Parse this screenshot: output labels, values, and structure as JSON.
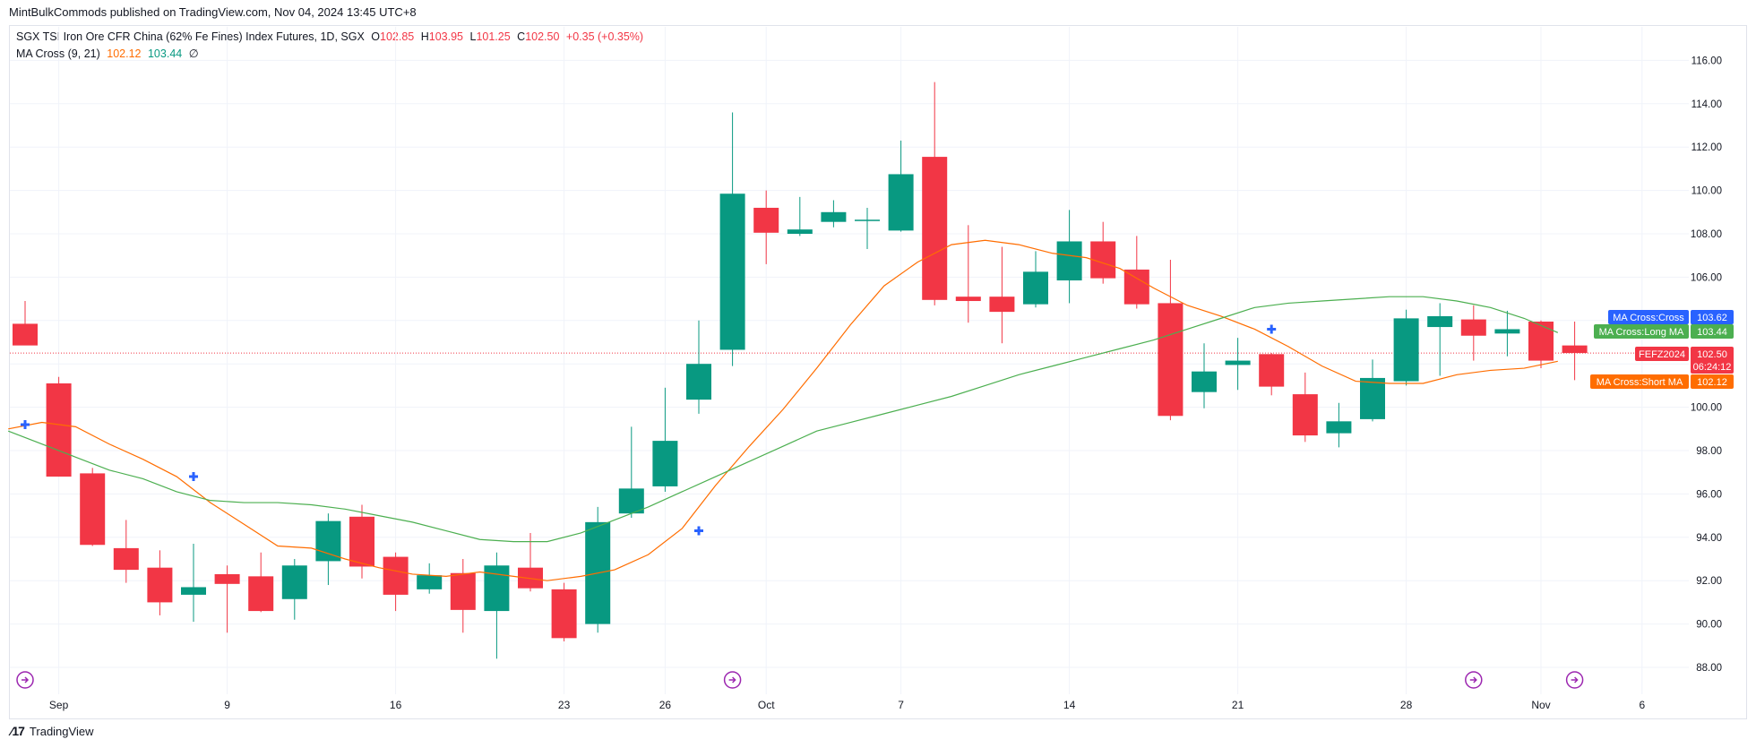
{
  "header": {
    "publisher_line": "MintBulkCommods published on TradingView.com, Nov 04, 2024 13:45 UTC+8"
  },
  "legend": {
    "symbol_title": "SGX TSI Iron Ore CFR China (62% Fe Fines) Index Futures, 1D, SGX",
    "o_label": "O",
    "o_value": "102.85",
    "h_label": "H",
    "h_value": "103.95",
    "l_label": "L",
    "l_value": "101.25",
    "c_label": "C",
    "c_value": "102.50",
    "change": "+0.35 (+0.35%)",
    "indicator_name": "MA Cross (9, 21)",
    "short_ma_value": "102.12",
    "long_ma_value": "103.44",
    "indicator_extra": "∅"
  },
  "price_labels": {
    "cross_label": "MA Cross:Cross",
    "cross_value": "103.62",
    "long_label": "MA Cross:Long MA",
    "long_value": "103.44",
    "symbol_label": "FEFZ2024",
    "symbol_value": "102.50",
    "countdown": "06:24:12",
    "short_label": "MA Cross:Short MA",
    "short_value": "102.12"
  },
  "footer": {
    "brand": "TradingView"
  },
  "colors": {
    "up": "#089981",
    "down": "#f23645",
    "short_ma": "#ff6d00",
    "long_ma": "#4caf50",
    "cross_marker": "#2962ff",
    "event_marker": "#9c27b0",
    "grid": "#f0f3fa"
  },
  "chart_data": {
    "type": "candlestick",
    "title": "SGX TSI Iron Ore CFR China (62% Fe Fines) Index Futures, 1D, SGX",
    "ylim": [
      87,
      117
    ],
    "y_ticks": [
      88,
      90,
      92,
      94,
      96,
      98,
      100,
      102,
      104,
      106,
      108,
      110,
      112,
      114,
      116
    ],
    "y_tick_labels": [
      "88.00",
      "90.00",
      "92.00",
      "94.00",
      "96.00",
      "98.00",
      "100.00",
      "102.00",
      "104.00",
      "106.00",
      "108.00",
      "110.00",
      "112.00",
      "114.00",
      "116.00"
    ],
    "x_tick_labels": [
      {
        "label": "Sep",
        "index": 1
      },
      {
        "label": "9",
        "index": 6
      },
      {
        "label": "16",
        "index": 11
      },
      {
        "label": "23",
        "index": 16
      },
      {
        "label": "26",
        "index": 19
      },
      {
        "label": "Oct",
        "index": 22
      },
      {
        "label": "7",
        "index": 26
      },
      {
        "label": "14",
        "index": 31
      },
      {
        "label": "21",
        "index": 36
      },
      {
        "label": "28",
        "index": 41
      },
      {
        "label": "Nov",
        "index": 45
      },
      {
        "label": "6",
        "index": 48
      }
    ],
    "candles": [
      {
        "o": 103.85,
        "h": 104.9,
        "l": 103.0,
        "c": 102.85
      },
      {
        "o": 101.1,
        "h": 101.4,
        "l": 96.8,
        "c": 96.8
      },
      {
        "o": 96.95,
        "h": 97.2,
        "l": 93.6,
        "c": 93.65
      },
      {
        "o": 93.5,
        "h": 94.8,
        "l": 91.9,
        "c": 92.5
      },
      {
        "o": 92.6,
        "h": 93.4,
        "l": 90.4,
        "c": 91.0
      },
      {
        "o": 91.35,
        "h": 93.7,
        "l": 90.1,
        "c": 91.7
      },
      {
        "o": 92.3,
        "h": 92.7,
        "l": 89.6,
        "c": 91.85
      },
      {
        "o": 92.2,
        "h": 93.3,
        "l": 90.55,
        "c": 90.6
      },
      {
        "o": 91.15,
        "h": 93.0,
        "l": 90.2,
        "c": 92.7
      },
      {
        "o": 92.9,
        "h": 95.1,
        "l": 91.8,
        "c": 94.75
      },
      {
        "o": 94.95,
        "h": 95.5,
        "l": 92.1,
        "c": 92.65
      },
      {
        "o": 93.1,
        "h": 93.3,
        "l": 90.6,
        "c": 91.35
      },
      {
        "o": 91.6,
        "h": 92.8,
        "l": 91.4,
        "c": 92.25
      },
      {
        "o": 92.35,
        "h": 93.0,
        "l": 89.6,
        "c": 90.65
      },
      {
        "o": 90.6,
        "h": 93.3,
        "l": 88.4,
        "c": 92.7
      },
      {
        "o": 92.6,
        "h": 94.2,
        "l": 91.5,
        "c": 91.65
      },
      {
        "o": 91.6,
        "h": 91.9,
        "l": 89.2,
        "c": 89.35
      },
      {
        "o": 90.0,
        "h": 95.4,
        "l": 89.6,
        "c": 94.7
      },
      {
        "o": 95.1,
        "h": 99.1,
        "l": 94.9,
        "c": 96.25
      },
      {
        "o": 96.35,
        "h": 100.9,
        "l": 96.1,
        "c": 98.45
      },
      {
        "o": 100.35,
        "h": 104.0,
        "l": 99.7,
        "c": 102.0
      },
      {
        "o": 102.65,
        "h": 113.6,
        "l": 101.9,
        "c": 109.85
      },
      {
        "o": 109.2,
        "h": 110.0,
        "l": 106.6,
        "c": 108.05
      },
      {
        "o": 108.0,
        "h": 109.7,
        "l": 107.9,
        "c": 108.2
      },
      {
        "o": 108.55,
        "h": 109.55,
        "l": 108.3,
        "c": 109.0
      },
      {
        "o": 108.65,
        "h": 109.2,
        "l": 107.3,
        "c": 108.65
      },
      {
        "o": 108.15,
        "h": 112.3,
        "l": 108.1,
        "c": 110.75
      },
      {
        "o": 111.55,
        "h": 115.0,
        "l": 104.7,
        "c": 104.95
      },
      {
        "o": 105.1,
        "h": 108.4,
        "l": 103.9,
        "c": 104.9
      },
      {
        "o": 105.1,
        "h": 107.4,
        "l": 102.95,
        "c": 104.4
      },
      {
        "o": 104.75,
        "h": 107.2,
        "l": 104.6,
        "c": 106.25
      },
      {
        "o": 105.85,
        "h": 109.1,
        "l": 104.8,
        "c": 107.65
      },
      {
        "o": 107.65,
        "h": 108.55,
        "l": 105.7,
        "c": 105.95
      },
      {
        "o": 106.35,
        "h": 107.9,
        "l": 104.55,
        "c": 104.75
      },
      {
        "o": 104.8,
        "h": 106.8,
        "l": 99.4,
        "c": 99.6
      },
      {
        "o": 100.7,
        "h": 102.95,
        "l": 99.95,
        "c": 101.65
      },
      {
        "o": 101.95,
        "h": 103.2,
        "l": 100.8,
        "c": 102.15
      },
      {
        "o": 102.45,
        "h": 102.5,
        "l": 100.55,
        "c": 100.95
      },
      {
        "o": 100.6,
        "h": 101.6,
        "l": 98.4,
        "c": 98.7
      },
      {
        "o": 98.8,
        "h": 100.2,
        "l": 98.15,
        "c": 99.35
      },
      {
        "o": 99.45,
        "h": 102.2,
        "l": 99.35,
        "c": 101.35
      },
      {
        "o": 101.2,
        "h": 104.5,
        "l": 101.0,
        "c": 104.1
      },
      {
        "o": 103.7,
        "h": 104.8,
        "l": 101.45,
        "c": 104.2
      },
      {
        "o": 104.05,
        "h": 104.7,
        "l": 102.15,
        "c": 103.3
      },
      {
        "o": 103.4,
        "h": 104.45,
        "l": 102.35,
        "c": 103.6
      },
      {
        "o": 103.95,
        "h": 104.0,
        "l": 101.8,
        "c": 102.15
      },
      {
        "o": 102.85,
        "h": 103.95,
        "l": 101.25,
        "c": 102.5
      }
    ],
    "series": [
      {
        "name": "MA Cross:Short MA",
        "values": [
          99.0,
          99.3,
          99.1,
          98.3,
          97.6,
          96.8,
          95.6,
          94.6,
          93.6,
          93.5,
          93.0,
          92.6,
          92.3,
          92.2,
          92.4,
          92.2,
          92.0,
          92.2,
          92.5,
          93.2,
          94.4,
          96.4,
          98.2,
          99.9,
          101.8,
          103.8,
          105.6,
          106.7,
          107.5,
          107.7,
          107.5,
          107.1,
          106.9,
          106.4,
          105.5,
          104.7,
          104.2,
          103.6,
          102.8,
          101.9,
          101.2,
          101.1,
          101.1,
          101.5,
          101.7,
          101.8,
          102.12
        ]
      },
      {
        "name": "MA Cross:Long MA",
        "values": [
          98.9,
          98.3,
          97.7,
          97.1,
          96.7,
          96.1,
          95.7,
          95.6,
          95.6,
          95.5,
          95.3,
          95.0,
          94.7,
          94.3,
          93.9,
          93.8,
          93.8,
          94.2,
          94.8,
          95.4,
          96.1,
          96.8,
          97.5,
          98.2,
          98.9,
          99.3,
          99.7,
          100.1,
          100.5,
          101.0,
          101.5,
          101.9,
          102.3,
          102.7,
          103.1,
          103.6,
          104.1,
          104.6,
          104.8,
          104.9,
          105.0,
          105.1,
          105.1,
          104.9,
          104.6,
          104.1,
          103.44
        ]
      }
    ],
    "cross_markers": [
      {
        "index": 0,
        "y": 99.2
      },
      {
        "index": 5,
        "y": 96.8
      },
      {
        "index": 20,
        "y": 94.3
      },
      {
        "index": 37,
        "y": 103.6
      }
    ],
    "event_markers": [
      {
        "index": 0
      },
      {
        "index": 21
      },
      {
        "index": 43
      },
      {
        "index": 46
      }
    ],
    "last_price": 102.5
  }
}
